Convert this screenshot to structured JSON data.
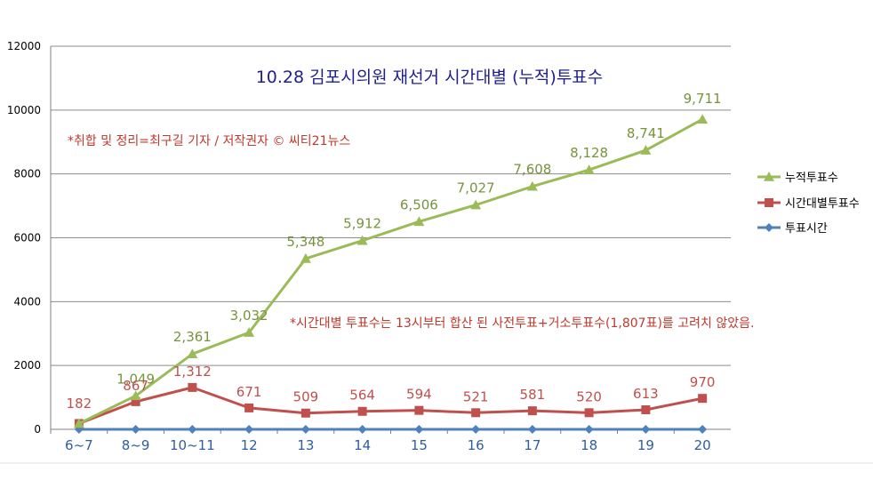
{
  "chart_data": {
    "type": "line",
    "title": "10.28 김포시의원 재선거 시간대별 (누적)투표수",
    "annotations": [
      "*취합 및 정리=최구길 기자 / 저작권자 © 씨티21뉴스",
      "*시간대별 투표수는 13시부터 합산 된 사전투표+거소투표수(1,807표)를 고려치 않았음."
    ],
    "categories": [
      "6~7",
      "8~9",
      "10~11",
      "12",
      "13",
      "14",
      "15",
      "16",
      "17",
      "18",
      "19",
      "20"
    ],
    "y_ticks": [
      "0",
      "2000",
      "4000",
      "6000",
      "8000",
      "10000",
      "12000"
    ],
    "ylim": [
      0,
      12000
    ],
    "grid": true,
    "legend_position": "right",
    "series": [
      {
        "name": "누적투표수",
        "color": "#9bbb59",
        "marker": "triangle",
        "values": [
          182,
          1049,
          2361,
          3032,
          5348,
          5912,
          6506,
          7027,
          7608,
          8128,
          8741,
          9711
        ],
        "labels": [
          "",
          "1,049",
          "2,361",
          "3,032",
          "5,348",
          "5,912",
          "6,506",
          "7,027",
          "7,608",
          "8,128",
          "8,741",
          "9,711"
        ]
      },
      {
        "name": "시간대별투표수",
        "color": "#c0504d",
        "marker": "square",
        "values": [
          182,
          867,
          1312,
          671,
          509,
          564,
          594,
          521,
          581,
          520,
          613,
          970
        ],
        "labels": [
          "182",
          "867",
          "1,312",
          "671",
          "509",
          "564",
          "594",
          "521",
          "581",
          "520",
          "613",
          "970"
        ]
      },
      {
        "name": "투표시간",
        "color": "#4f81bd",
        "marker": "diamond",
        "values": [
          0,
          0,
          0,
          0,
          0,
          0,
          0,
          0,
          0,
          0,
          0,
          0
        ],
        "labels": []
      }
    ]
  }
}
